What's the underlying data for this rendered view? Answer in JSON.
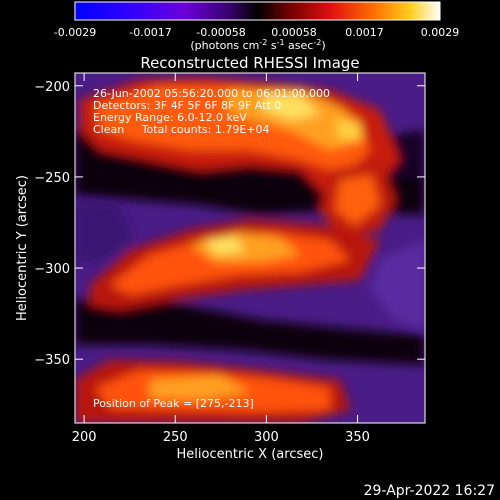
{
  "colors": {
    "background": "#000000",
    "text": "#ffffff"
  },
  "colorbar": {
    "ticks": [
      "-0.0029",
      "-0.0017",
      "-0.00058",
      "0.00058",
      "0.0017",
      "0.0029"
    ],
    "tick_values": [
      -0.0029,
      -0.0017,
      -0.00058,
      0.00058,
      0.0017,
      0.0029
    ],
    "range": [
      -0.0029,
      0.0029
    ],
    "units_main": "(photons cm",
    "units_exp1": "-2",
    "units_mid": " s",
    "units_exp2": "-1",
    "units_end": " asec",
    "units_exp3": "-2",
    "units_close": ")"
  },
  "chart_data": {
    "type": "heatmap",
    "title": "Reconstructed RHESSI Image",
    "xlabel": "Heliocentric X (arcsec)",
    "ylabel": "Heliocentric Y (arcsec)",
    "xlim": [
      195,
      387
    ],
    "ylim": [
      -385,
      -193
    ],
    "xticks": [
      200,
      250,
      300,
      350
    ],
    "yticks": [
      -200,
      -250,
      -300,
      -350
    ],
    "xtick_labels": [
      "200",
      "250",
      "300",
      "350"
    ],
    "ytick_labels": [
      "−200",
      "−250",
      "−300",
      "−350"
    ],
    "annotations": [
      "26-Jun-2002 05:56:20.000 to 06:01:00.000",
      "Detectors: 3F 4F 5F 6F 8F 9F  Att 0",
      "Energy Range: 6.0-12.0 keV",
      "Clean     Total counts: 1.79E+04"
    ],
    "peak_label": "Position of Peak = [275,-213]",
    "peak": [
      275,
      -213
    ],
    "colormap": "blue-purple-black-red-orange-yellow-white"
  },
  "footer": {
    "date": "29-Apr-2022 16:27"
  }
}
